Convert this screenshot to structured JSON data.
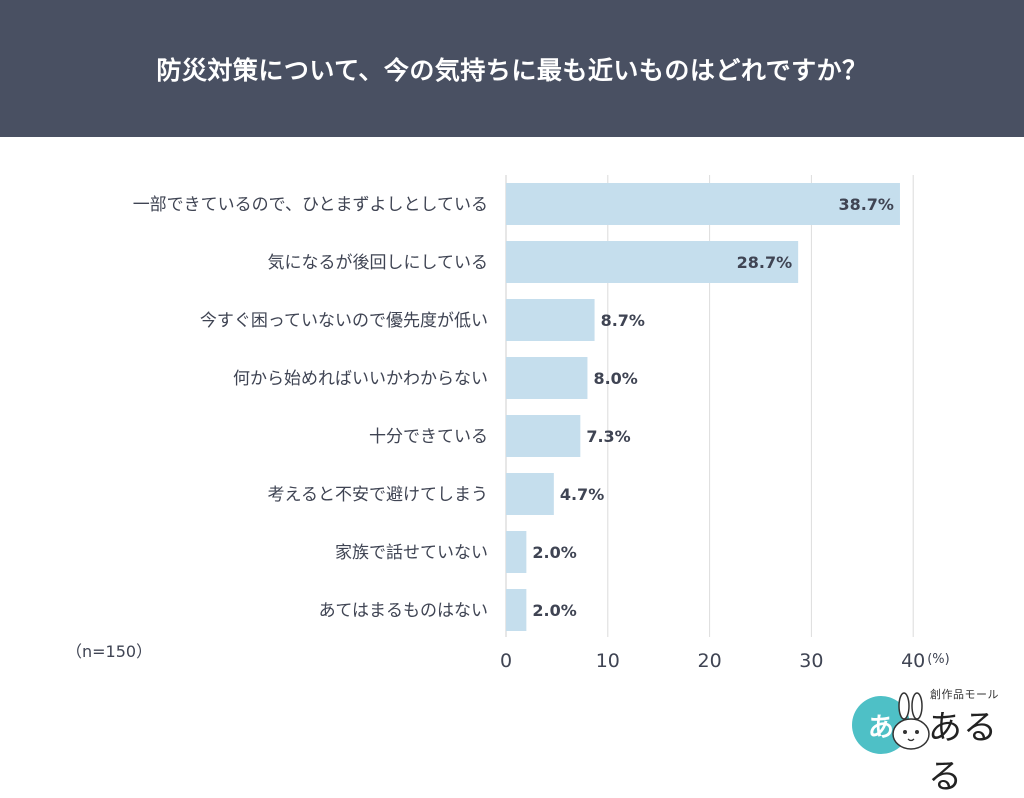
{
  "header": {
    "title": "防災対策について、今の気持ちに最も近いものはどれですか？"
  },
  "sample_note": "（n=150）",
  "chart_data": {
    "type": "bar",
    "orientation": "horizontal",
    "categories": [
      "一部できているので、ひとまずよしとしている",
      "気になるが後回しにしている",
      "今すぐ困っていないので優先度が低い",
      "何から始めればいいかわからない",
      "十分できている",
      "考えると不安で避けてしまう",
      "家族で話せていない",
      "あてはまるものはない"
    ],
    "values": [
      38.7,
      28.7,
      8.7,
      8.0,
      7.3,
      4.7,
      2.0,
      2.0
    ],
    "value_labels": [
      "38.7%",
      "28.7%",
      "8.7%",
      "8.0%",
      "7.3%",
      "4.7%",
      "2.0%",
      "2.0%"
    ],
    "xlim": [
      0,
      40
    ],
    "xticks": [
      0,
      10,
      20,
      30,
      40
    ],
    "tick_labels": [
      "0",
      "10",
      "20",
      "30",
      "40"
    ],
    "unit_label": "(%)",
    "grid": true,
    "bar_color": "#c5deed",
    "grid_color": "#dcdcdc"
  },
  "logo": {
    "circle_text": "あ",
    "subtitle": "創作品モール",
    "name": "あるる",
    "circle_color": "#4ec0c6"
  }
}
